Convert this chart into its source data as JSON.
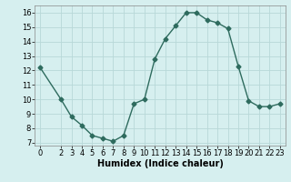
{
  "x": [
    0,
    2,
    3,
    4,
    5,
    6,
    7,
    8,
    9,
    10,
    11,
    12,
    13,
    14,
    15,
    16,
    17,
    18,
    19,
    20,
    21,
    22,
    23
  ],
  "y": [
    12.2,
    10.0,
    8.8,
    8.2,
    7.5,
    7.3,
    7.1,
    7.5,
    9.7,
    10.0,
    12.8,
    14.2,
    15.1,
    16.0,
    16.0,
    15.5,
    15.3,
    14.9,
    12.3,
    9.9,
    9.5,
    9.5,
    9.7
  ],
  "line_color": "#2e6b5e",
  "bg_color": "#d6efef",
  "grid_color": "#b8d8d8",
  "xlabel": "Humidex (Indice chaleur)",
  "ylim": [
    6.8,
    16.5
  ],
  "yticks": [
    7,
    8,
    9,
    10,
    11,
    12,
    13,
    14,
    15,
    16
  ],
  "xticks": [
    0,
    2,
    3,
    4,
    5,
    6,
    7,
    8,
    9,
    10,
    11,
    12,
    13,
    14,
    15,
    16,
    17,
    18,
    19,
    20,
    21,
    22,
    23
  ],
  "xlim": [
    -0.5,
    23.5
  ],
  "marker": "D",
  "markersize": 2.5,
  "linewidth": 1.0,
  "xlabel_fontsize": 7,
  "tick_fontsize": 6
}
